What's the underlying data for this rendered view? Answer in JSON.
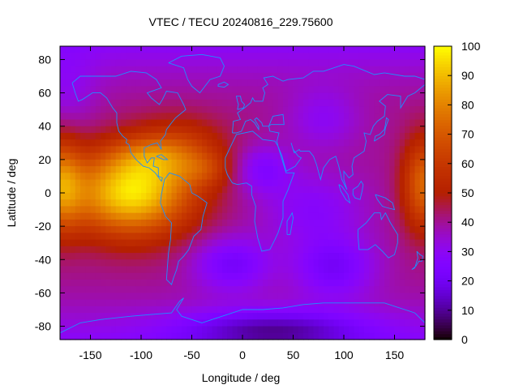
{
  "chart_data": {
    "type": "heatmap",
    "title": "VTEC / TECU 20240816_229.75600",
    "xlabel": "Longitude / deg",
    "ylabel": "Latitude / deg",
    "xlim": [
      -180,
      180
    ],
    "ylim": [
      -88,
      88
    ],
    "x_ticks": [
      -150,
      -100,
      -50,
      0,
      50,
      100,
      150
    ],
    "y_ticks": [
      80,
      60,
      40,
      20,
      0,
      -20,
      -40,
      -60,
      -80
    ],
    "colorbar": {
      "min": 0,
      "max": 100,
      "ticks": [
        0,
        10,
        20,
        30,
        40,
        50,
        60,
        70,
        80,
        90,
        100
      ],
      "palette": "gnuplot-pm3d (black-purple-red-orange-yellow)"
    },
    "grid": false,
    "coastline_color": "#1e90ff",
    "features": [
      {
        "lon": -120,
        "lat": -3,
        "vtec": 96
      },
      {
        "lon": -95,
        "lat": 2,
        "vtec": 98
      },
      {
        "lon": -40,
        "lat": 13,
        "vtec": 55
      },
      {
        "lon": 20,
        "lat": 12,
        "vtec": 28
      },
      {
        "lon": 178,
        "lat": 5,
        "vtec": 74
      },
      {
        "lon": -10,
        "lat": -43,
        "vtec": 14
      },
      {
        "lon": 90,
        "lat": -45,
        "vtec": 12
      },
      {
        "lon": 30,
        "lat": -80,
        "vtec": 4
      },
      {
        "lon": 80,
        "lat": 45,
        "vtec": 25
      }
    ]
  }
}
